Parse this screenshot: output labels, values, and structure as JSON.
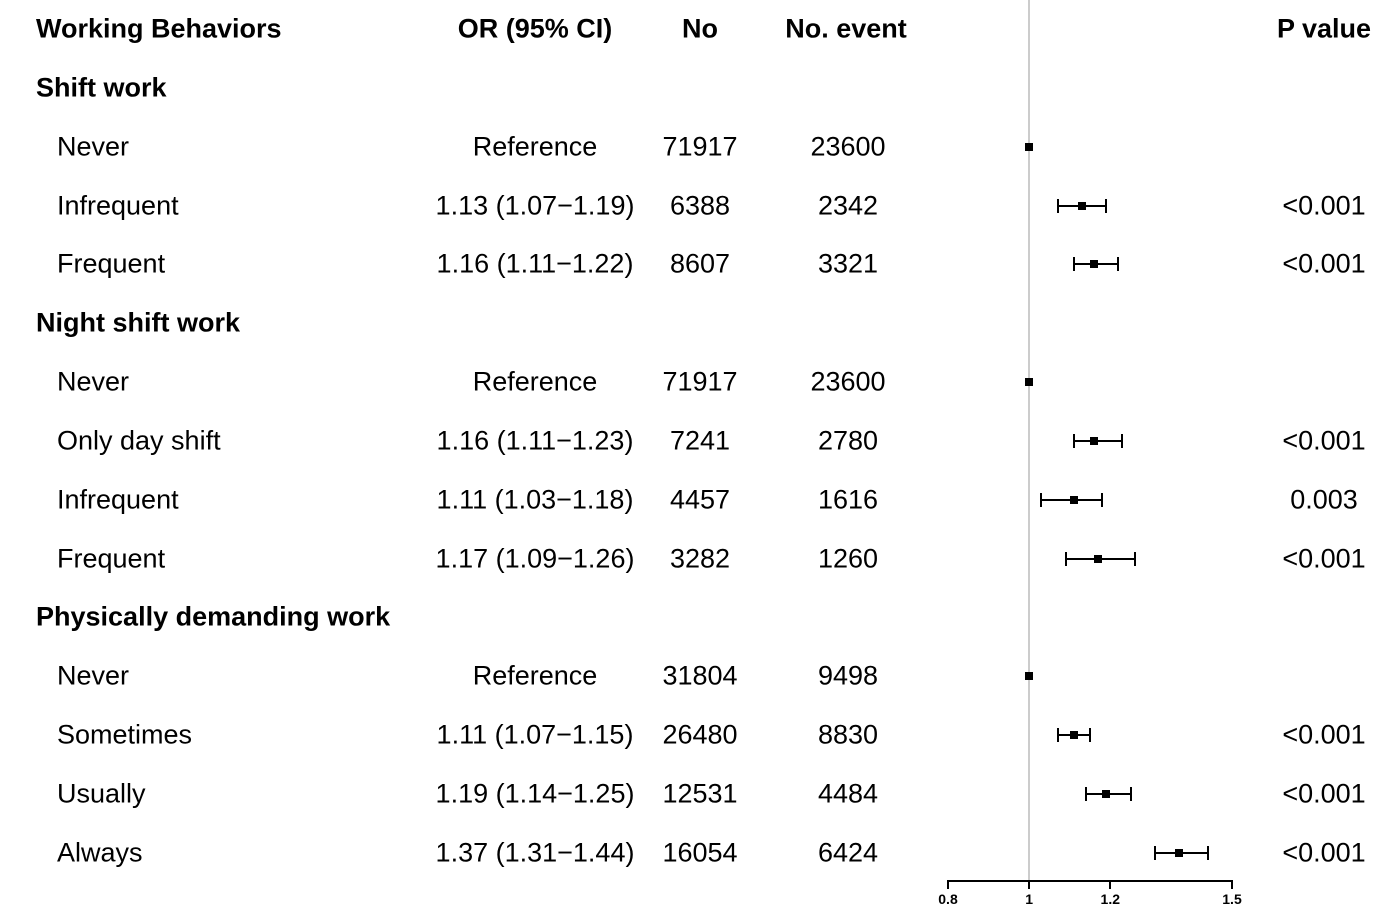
{
  "chart_data": {
    "type": "scatter",
    "variant": "forest-plot",
    "title": "",
    "xlabel": "",
    "legend": null,
    "grid": false,
    "columns": [
      "Working Behaviors",
      "OR (95% CI)",
      "No",
      "No. event",
      "P value"
    ],
    "x_axis": {
      "scale": "linear",
      "range": [
        0.8,
        1.5
      ],
      "ticks": [
        0.8,
        1,
        1.2,
        1.5
      ],
      "tick_labels": [
        "0.8",
        "1",
        "1.2",
        "1.5"
      ],
      "reference_line": 1
    },
    "groups": [
      {
        "title": "Shift work",
        "rows": [
          {
            "label": "Never",
            "or_ci": "Reference",
            "n": "71917",
            "events": "23600",
            "p": "",
            "or": 1,
            "ci_low": null,
            "ci_high": null,
            "reference": true
          },
          {
            "label": "Infrequent",
            "or_ci": "1.13 (1.07−1.19)",
            "n": "6388",
            "events": "2342",
            "p": "<0.001",
            "or": 1.13,
            "ci_low": 1.07,
            "ci_high": 1.19,
            "reference": false
          },
          {
            "label": "Frequent",
            "or_ci": "1.16 (1.11−1.22)",
            "n": "8607",
            "events": "3321",
            "p": "<0.001",
            "or": 1.16,
            "ci_low": 1.11,
            "ci_high": 1.22,
            "reference": false
          }
        ]
      },
      {
        "title": "Night shift work",
        "rows": [
          {
            "label": "Never",
            "or_ci": "Reference",
            "n": "71917",
            "events": "23600",
            "p": "",
            "or": 1,
            "ci_low": null,
            "ci_high": null,
            "reference": true
          },
          {
            "label": "Only day shift",
            "or_ci": "1.16 (1.11−1.23)",
            "n": "7241",
            "events": "2780",
            "p": "<0.001",
            "or": 1.16,
            "ci_low": 1.11,
            "ci_high": 1.23,
            "reference": false
          },
          {
            "label": "Infrequent",
            "or_ci": "1.11 (1.03−1.18)",
            "n": "4457",
            "events": "1616",
            "p": "0.003",
            "or": 1.11,
            "ci_low": 1.03,
            "ci_high": 1.18,
            "reference": false
          },
          {
            "label": "Frequent",
            "or_ci": "1.17 (1.09−1.26)",
            "n": "3282",
            "events": "1260",
            "p": "<0.001",
            "or": 1.17,
            "ci_low": 1.09,
            "ci_high": 1.26,
            "reference": false
          }
        ]
      },
      {
        "title": "Physically demanding work",
        "rows": [
          {
            "label": "Never",
            "or_ci": "Reference",
            "n": "31804",
            "events": "9498",
            "p": "",
            "or": 1,
            "ci_low": null,
            "ci_high": null,
            "reference": true
          },
          {
            "label": "Sometimes",
            "or_ci": "1.11 (1.07−1.15)",
            "n": "26480",
            "events": "8830",
            "p": "<0.001",
            "or": 1.11,
            "ci_low": 1.07,
            "ci_high": 1.15,
            "reference": false
          },
          {
            "label": "Usually",
            "or_ci": "1.19 (1.14−1.25)",
            "n": "12531",
            "events": "4484",
            "p": "<0.001",
            "or": 1.19,
            "ci_low": 1.14,
            "ci_high": 1.25,
            "reference": false
          },
          {
            "label": "Always",
            "or_ci": "1.37 (1.31−1.44)",
            "n": "16054",
            "events": "6424",
            "p": "<0.001",
            "or": 1.37,
            "ci_low": 1.31,
            "ci_high": 1.44,
            "reference": false
          }
        ]
      }
    ],
    "colors": {
      "text": "#000000",
      "marker": "#000000",
      "reference_line": "#cccccc",
      "background": "#ffffff"
    }
  }
}
